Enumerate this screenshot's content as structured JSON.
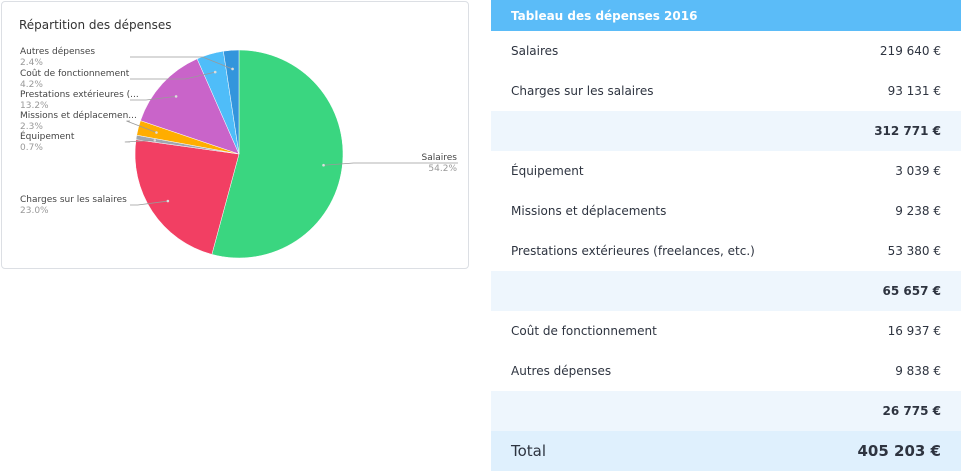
{
  "chart_data": {
    "type": "pie",
    "title": "Répartition des dépenses",
    "slices": [
      {
        "label": "Salaires",
        "pct_label": "54.2%",
        "value": 54.2,
        "color": "#3ad680"
      },
      {
        "label": "Charges sur les salaires",
        "pct_label": "23.0%",
        "value": 23.0,
        "color": "#f23f63"
      },
      {
        "label": "Équipement",
        "pct_label": "0.7%",
        "value": 0.7,
        "color": "#9fa6b0"
      },
      {
        "label": "Missions et déplacemen...",
        "pct_label": "2.3%",
        "value": 2.3,
        "color": "#ffad00"
      },
      {
        "label": "Prestations extérieures (...",
        "pct_label": "13.2%",
        "value": 13.2,
        "color": "#c964c9"
      },
      {
        "label": "Coût de fonctionnement",
        "pct_label": "4.2%",
        "value": 4.2,
        "color": "#4fbdf9"
      },
      {
        "label": "Autres dépenses",
        "pct_label": "2.4%",
        "value": 2.4,
        "color": "#3395dc"
      }
    ]
  },
  "table": {
    "header": "Tableau des dépenses 2016",
    "rows": [
      {
        "label": "Salaires",
        "value": "219 640 €",
        "type": "item"
      },
      {
        "label": "Charges sur les salaires",
        "value": "93 131 €",
        "type": "item"
      },
      {
        "label": "",
        "value": "312 771 €",
        "type": "sub"
      },
      {
        "label": "Équipement",
        "value": "3 039 €",
        "type": "item"
      },
      {
        "label": "Missions et déplacements",
        "value": "9 238 €",
        "type": "item"
      },
      {
        "label": "Prestations extérieures (freelances, etc.)",
        "value": "53 380 €",
        "type": "item"
      },
      {
        "label": "",
        "value": "65 657 €",
        "type": "sub"
      },
      {
        "label": "Coût de fonctionnement",
        "value": "16 937 €",
        "type": "item"
      },
      {
        "label": "Autres dépenses",
        "value": "9 838 €",
        "type": "item"
      },
      {
        "label": "",
        "value": "26 775 €",
        "type": "sub"
      }
    ],
    "total": {
      "label": "Total",
      "value": "405 203 €"
    }
  }
}
